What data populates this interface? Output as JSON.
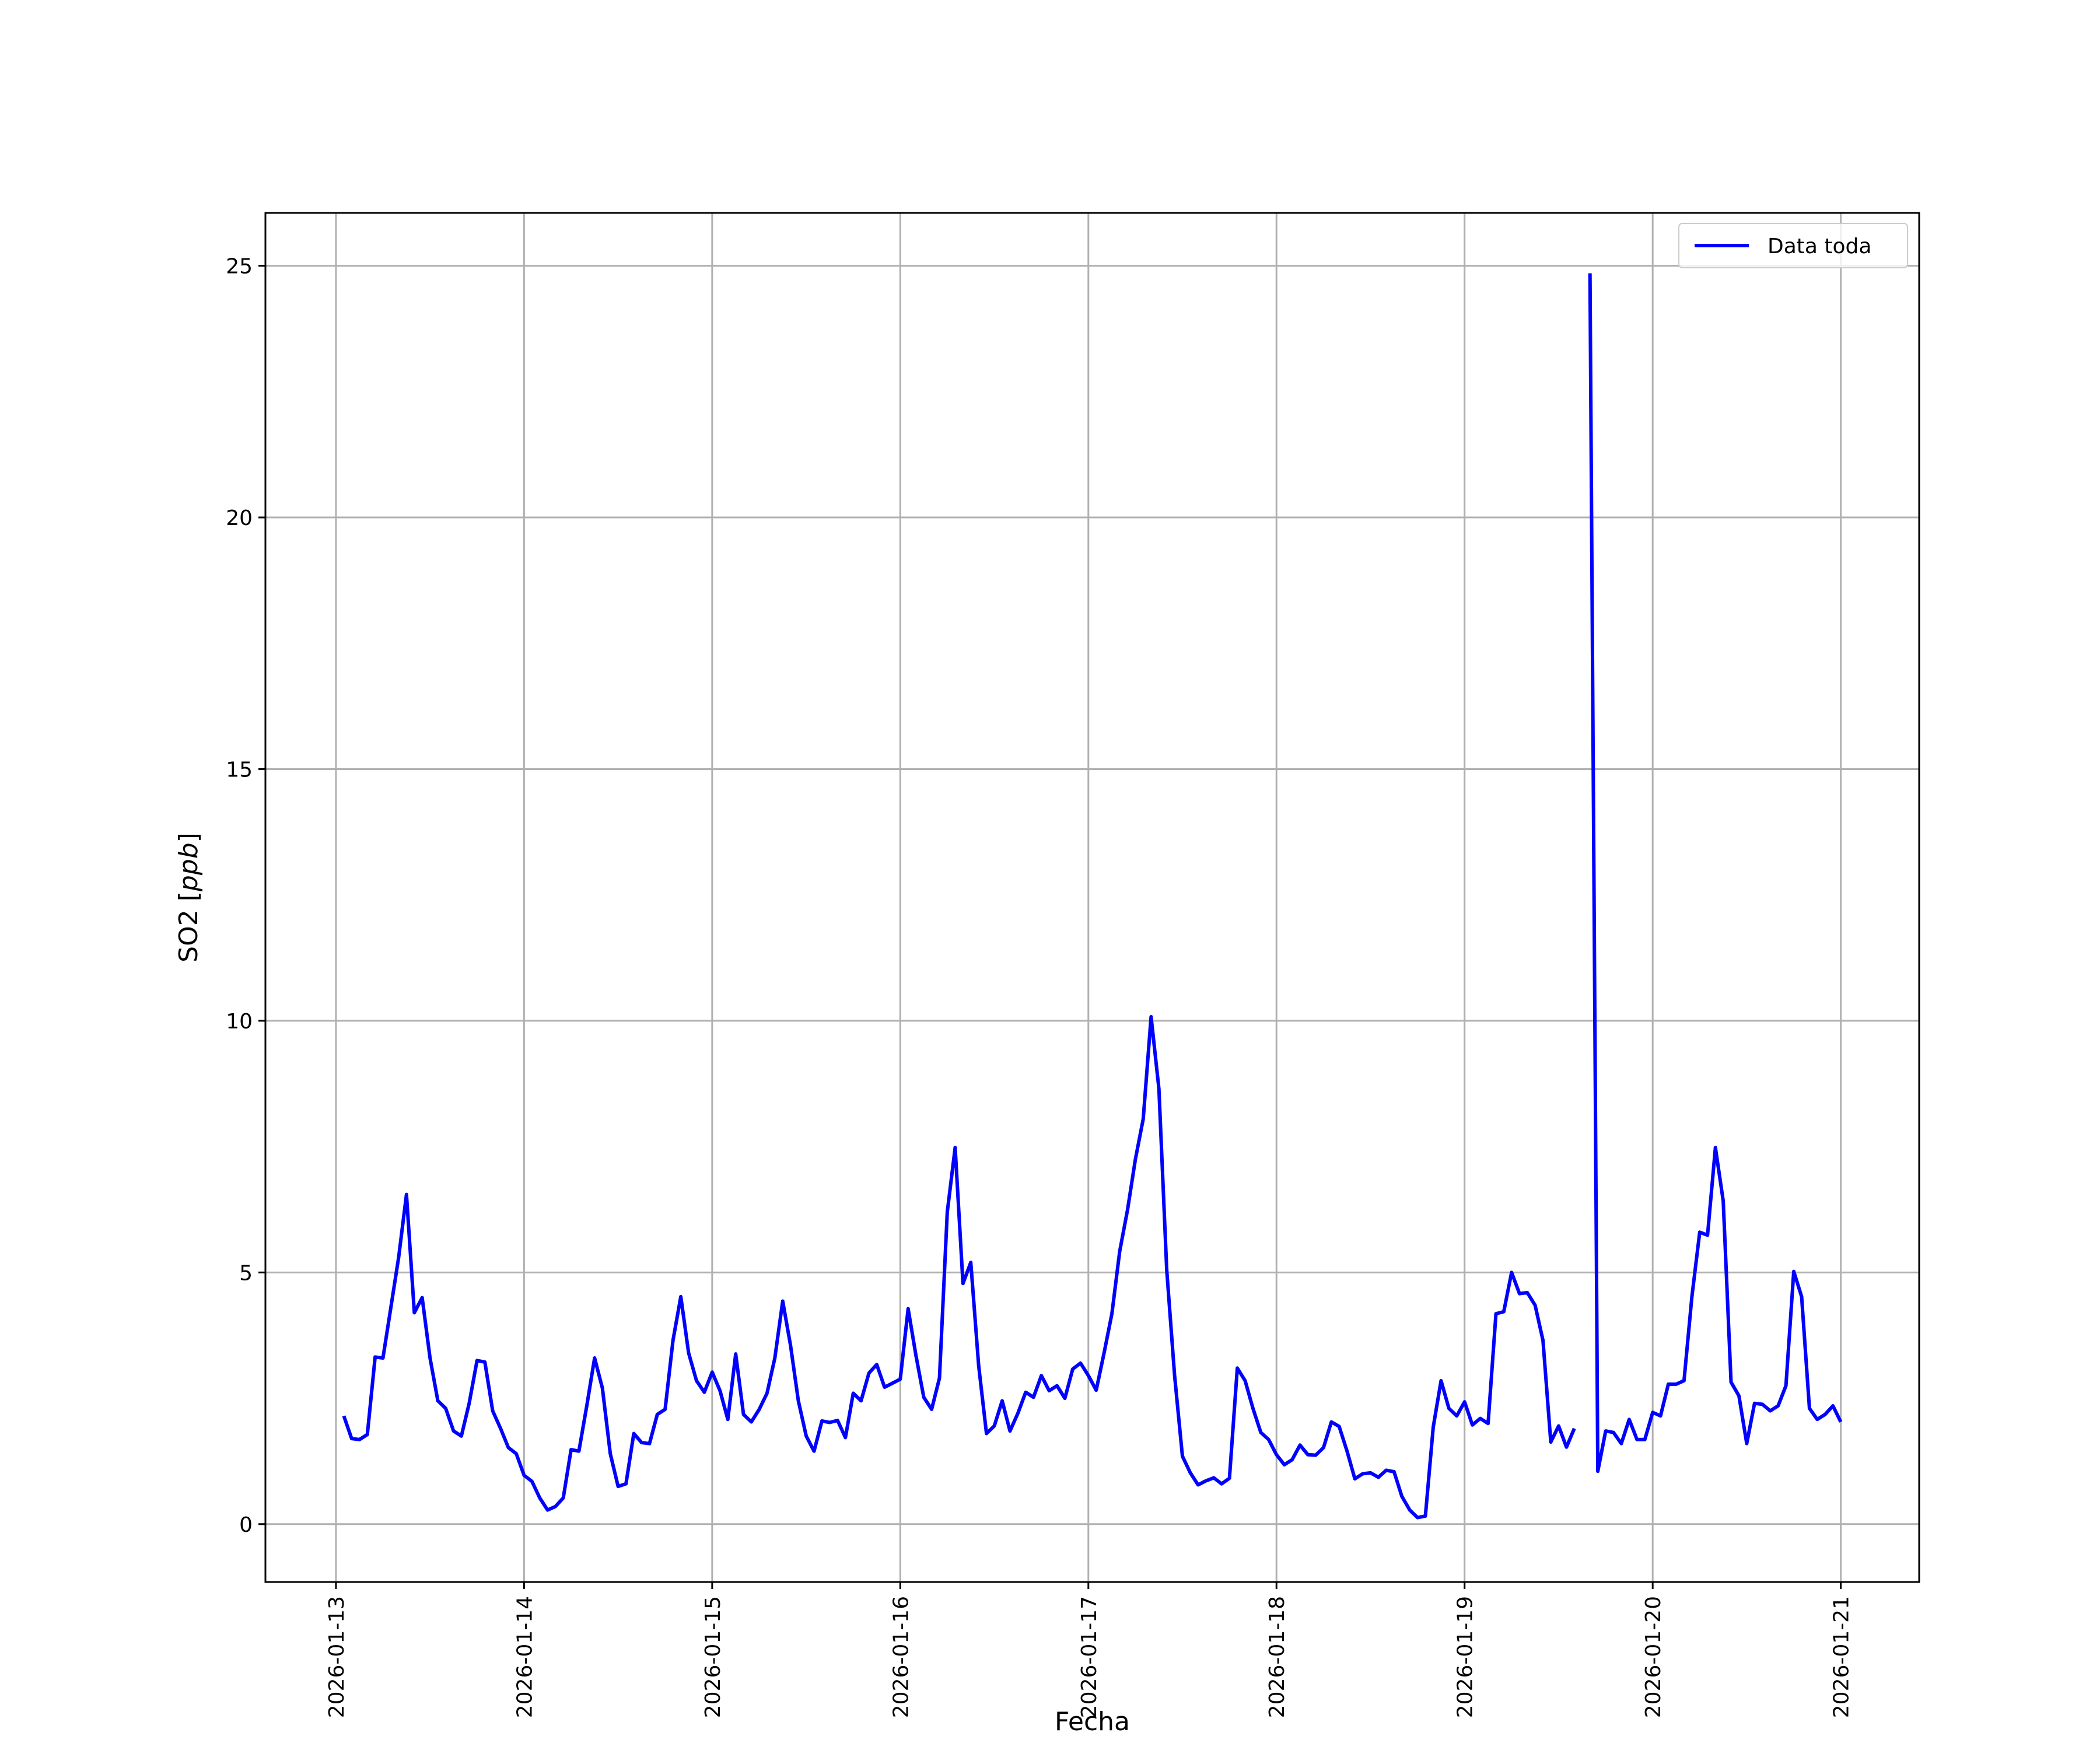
{
  "chart_data": {
    "type": "line",
    "xlabel": "Fecha",
    "ylabel_main": "SO2 [",
    "ylabel_unit": "ppb",
    "ylabel_end": "]",
    "ylim": [
      -1.15,
      26.05
    ],
    "xlim": [
      "2026-01-12 15:00",
      "2026-01-21 10:00"
    ],
    "yticks": [
      0,
      5,
      10,
      15,
      20,
      25
    ],
    "xticks": [
      "2026-01-13",
      "2026-01-14",
      "2026-01-15",
      "2026-01-16",
      "2026-01-17",
      "2026-01-18",
      "2026-01-19",
      "2026-01-20",
      "2026-01-21"
    ],
    "grid": true,
    "legend_position": "top-right",
    "series": [
      {
        "name": "Data toda",
        "color": "#0000ff",
        "interval_hours": 1,
        "segments": [
          {
            "start": "2026-01-13 01:00",
            "values": [
              2.15,
              1.7,
              1.68,
              1.78,
              3.32,
              3.3,
              4.3,
              5.3,
              6.55,
              4.2,
              4.5,
              3.3,
              2.45,
              2.3,
              1.85,
              1.75,
              2.4,
              3.25,
              3.22,
              2.25,
              1.9,
              1.52,
              1.4,
              0.97,
              0.85,
              0.52,
              0.28,
              0.35,
              0.52,
              1.48,
              1.45,
              2.35,
              3.3,
              2.7,
              1.4,
              0.75,
              0.8,
              1.8,
              1.62,
              1.6,
              2.18,
              2.28,
              3.65,
              4.52,
              3.4,
              2.85,
              2.62,
              3.02,
              2.65,
              2.08,
              3.38,
              2.18,
              2.03,
              2.28,
              2.6,
              3.3,
              4.43,
              3.55,
              2.45,
              1.75,
              1.45,
              2.05,
              2.02,
              2.06,
              1.72,
              2.6,
              2.45,
              3.0,
              3.17,
              2.72,
              2.8,
              2.88,
              4.28,
              3.35,
              2.52,
              2.28,
              2.9,
              6.2,
              7.48,
              4.78,
              5.2,
              3.15,
              1.8,
              1.95,
              2.45,
              1.85,
              2.2,
              2.62,
              2.52,
              2.95,
              2.65,
              2.75,
              2.5,
              3.08,
              3.2,
              2.95,
              2.66,
              3.4,
              4.18,
              5.42,
              6.25,
              7.25,
              8.05,
              10.08,
              8.65,
              5.05,
              2.95,
              1.35,
              1.02,
              0.78,
              0.86,
              0.92,
              0.8,
              0.91,
              3.1,
              2.85,
              2.3,
              1.82,
              1.68,
              1.38,
              1.18,
              1.28,
              1.57,
              1.38,
              1.37,
              1.52,
              2.03,
              1.94,
              1.45,
              0.9,
              1.0,
              1.02,
              0.93,
              1.07,
              1.04,
              0.55,
              0.28,
              0.13,
              0.16,
              1.93,
              2.85,
              2.3,
              2.15,
              2.43,
              1.97,
              2.1,
              2.0,
              4.18,
              4.22,
              5.0,
              4.58,
              4.6,
              4.35,
              3.65,
              1.63,
              1.95,
              1.53,
              1.9
            ]
          },
          {
            "start": "2026-01-19 16:00",
            "values": [
              24.85,
              1.05,
              1.85,
              1.82,
              1.6,
              2.08,
              1.68,
              1.68,
              2.22,
              2.15,
              2.78,
              2.78,
              2.85,
              4.52,
              5.8,
              5.74,
              7.48,
              6.42,
              2.82,
              2.55,
              1.6,
              2.4,
              2.38,
              2.25,
              2.35,
              2.75,
              5.02,
              4.52,
              2.3,
              2.08,
              2.18,
              2.35,
              2.03
            ]
          }
        ]
      }
    ]
  }
}
